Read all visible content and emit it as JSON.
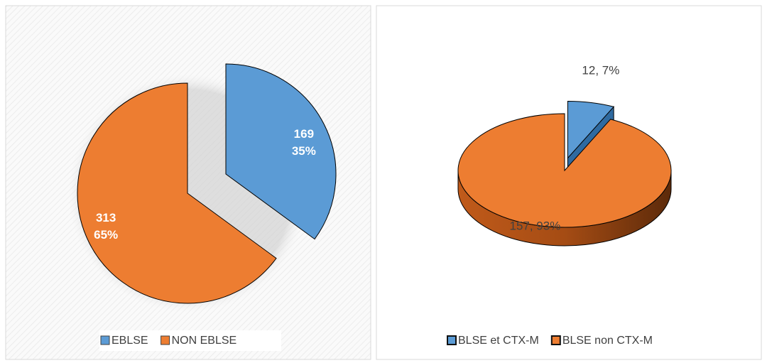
{
  "chart_data": [
    {
      "type": "pie",
      "categories": [
        "EBLSE",
        "NON EBLSE"
      ],
      "values": [
        169,
        313
      ],
      "percent_labels": [
        "35%",
        "65%"
      ],
      "colors": [
        "#5b9bd5",
        "#ed7d31"
      ],
      "exploded": [
        true,
        false
      ],
      "three_d": false
    },
    {
      "type": "pie",
      "categories": [
        "BLSE et CTX-M",
        "BLSE non CTX-M"
      ],
      "values": [
        12,
        157
      ],
      "value_labels": [
        "12, 7%",
        "157, 93%"
      ],
      "colors": [
        "#5b9bd5",
        "#ed7d31"
      ],
      "exploded": [
        true,
        false
      ],
      "three_d": true
    }
  ]
}
